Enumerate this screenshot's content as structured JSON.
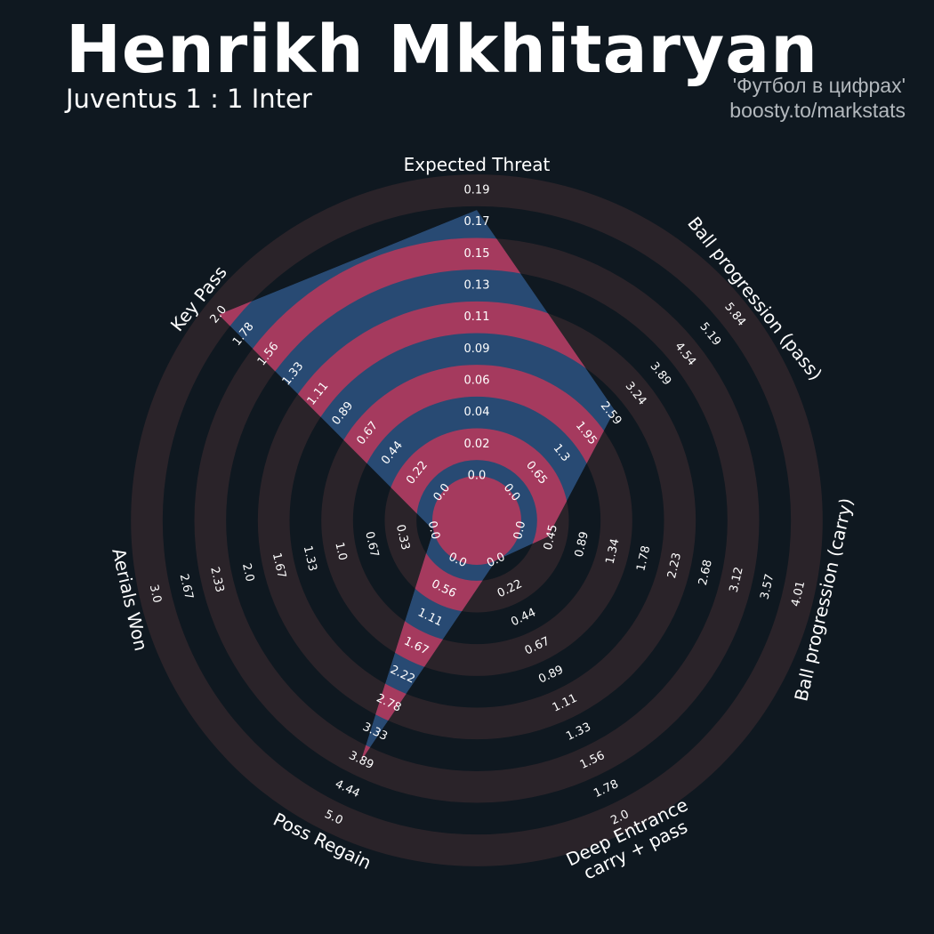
{
  "header": {
    "player": "Henrikh Mkhitaryan",
    "match": "Juventus 1 : 1 Inter",
    "credit_line1": "'Футбол в цифрах'",
    "credit_line2": "boosty.to/markstats"
  },
  "colors": {
    "background": "#0f1820",
    "rings": "#2a2329",
    "polygon_blue": "#284a73",
    "polygon_pink": "#a53a5e",
    "text": "#ffffff"
  },
  "chart_data": {
    "type": "radar",
    "title": "Henrikh Mkhitaryan",
    "subtitle": "Juventus 1 : 1 Inter",
    "axes": [
      {
        "label": "Expected Threat",
        "value": 0.177,
        "min": 0.0,
        "max": 0.19,
        "ticks": [
          "0.0",
          "0.02",
          "0.04",
          "0.06",
          "0.09",
          "0.11",
          "0.13",
          "0.15",
          "0.17",
          "0.19"
        ]
      },
      {
        "label": "Ball progression (pass)",
        "value": 2.7,
        "min": 0.0,
        "max": 5.84,
        "ticks": [
          "0.0",
          "0.65",
          "1.3",
          "1.95",
          "2.59",
          "3.24",
          "3.89",
          "4.54",
          "5.19",
          "5.84"
        ]
      },
      {
        "label": "Ball progression (carry)",
        "value": 0.4,
        "min": 0.0,
        "max": 4.01,
        "ticks": [
          "0.0",
          "0.45",
          "0.89",
          "1.34",
          "1.78",
          "2.23",
          "2.68",
          "3.12",
          "3.57",
          "4.01"
        ]
      },
      {
        "label": "Deep Entrance\ncarry + pass",
        "value": 0.0,
        "min": 0.0,
        "max": 2.0,
        "ticks": [
          "0.0",
          "0.22",
          "0.44",
          "0.67",
          "0.89",
          "1.11",
          "1.33",
          "1.56",
          "1.78",
          "2.0"
        ]
      },
      {
        "label": "Poss Regain",
        "value": 3.9,
        "min": 0.0,
        "max": 5.0,
        "ticks": [
          "0.0",
          "0.56",
          "1.11",
          "1.67",
          "2.22",
          "2.78",
          "3.33",
          "3.89",
          "4.44",
          "5.0"
        ]
      },
      {
        "label": "Aerials Won",
        "value": 0.0,
        "min": 0.0,
        "max": 3.0,
        "ticks": [
          "0.0",
          "0.33",
          "0.67",
          "1.0",
          "1.33",
          "1.67",
          "2.0",
          "2.33",
          "2.67",
          "3.0"
        ]
      },
      {
        "label": "Key Pass",
        "value": 2.0,
        "min": 0.0,
        "max": 2.0,
        "ticks": [
          "0.0",
          "0.22",
          "0.44",
          "0.67",
          "0.89",
          "1.11",
          "1.33",
          "1.56",
          "1.78",
          "2.0"
        ]
      }
    ]
  }
}
